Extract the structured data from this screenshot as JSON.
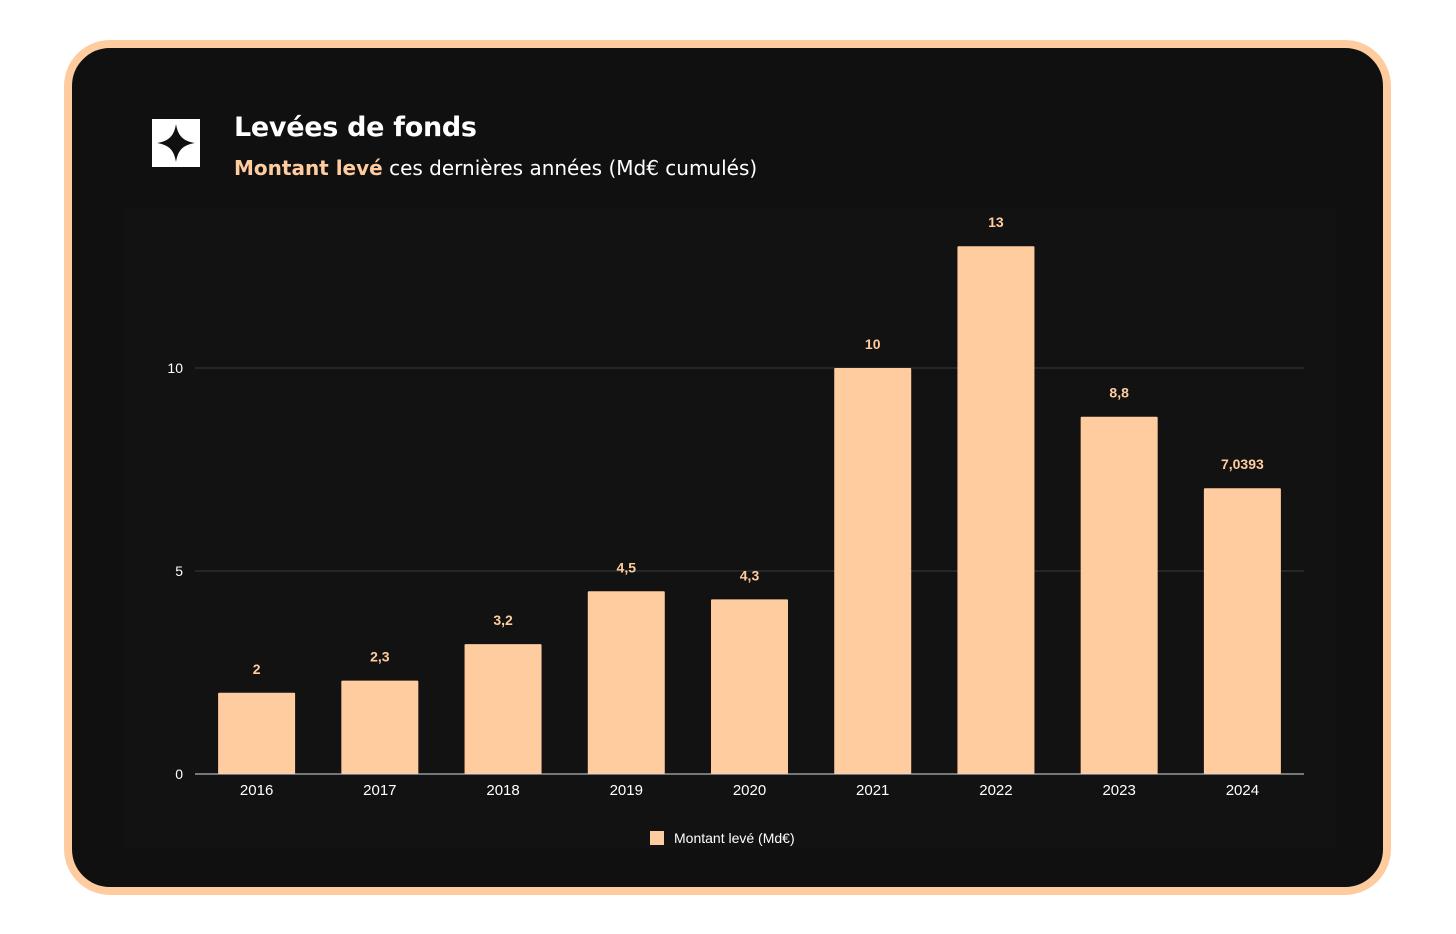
{
  "header": {
    "title": "Levées de fonds",
    "subtitle_accent": "Montant levé",
    "subtitle_rest": " ces dernières années (Md€ cumulés)"
  },
  "logo": {
    "icon": "four-point-star-icon"
  },
  "colors": {
    "frame_border": "#ffcc9f",
    "background": "#101010",
    "bar": "#ffcc9f",
    "data_label": "#ffcc9f",
    "text": "#ffffff",
    "grid": "#3a3a3a"
  },
  "legend": {
    "label": "Montant levé (Md€)",
    "placement": "bottom-center"
  },
  "chart_data": {
    "type": "bar",
    "categories": [
      "2016",
      "2017",
      "2018",
      "2019",
      "2020",
      "2021",
      "2022",
      "2023",
      "2024"
    ],
    "series": [
      {
        "name": "Montant levé (Md€)",
        "values": [
          2,
          2.3,
          3.2,
          4.5,
          4.3,
          10,
          13,
          8.8,
          7.0393
        ],
        "labels": [
          "2",
          "2,3",
          "3,2",
          "4,5",
          "4,3",
          "10",
          "13",
          "8,8",
          "7,0393"
        ]
      }
    ],
    "title": "Levées de fonds",
    "subtitle": "Montant levé ces dernières années (Md€ cumulés)",
    "xlabel": "",
    "ylabel": "",
    "ylim": [
      0,
      13
    ],
    "yticks": [
      0,
      5,
      10
    ],
    "ytick_labels": [
      "0",
      "5",
      "10"
    ],
    "grid": true
  }
}
